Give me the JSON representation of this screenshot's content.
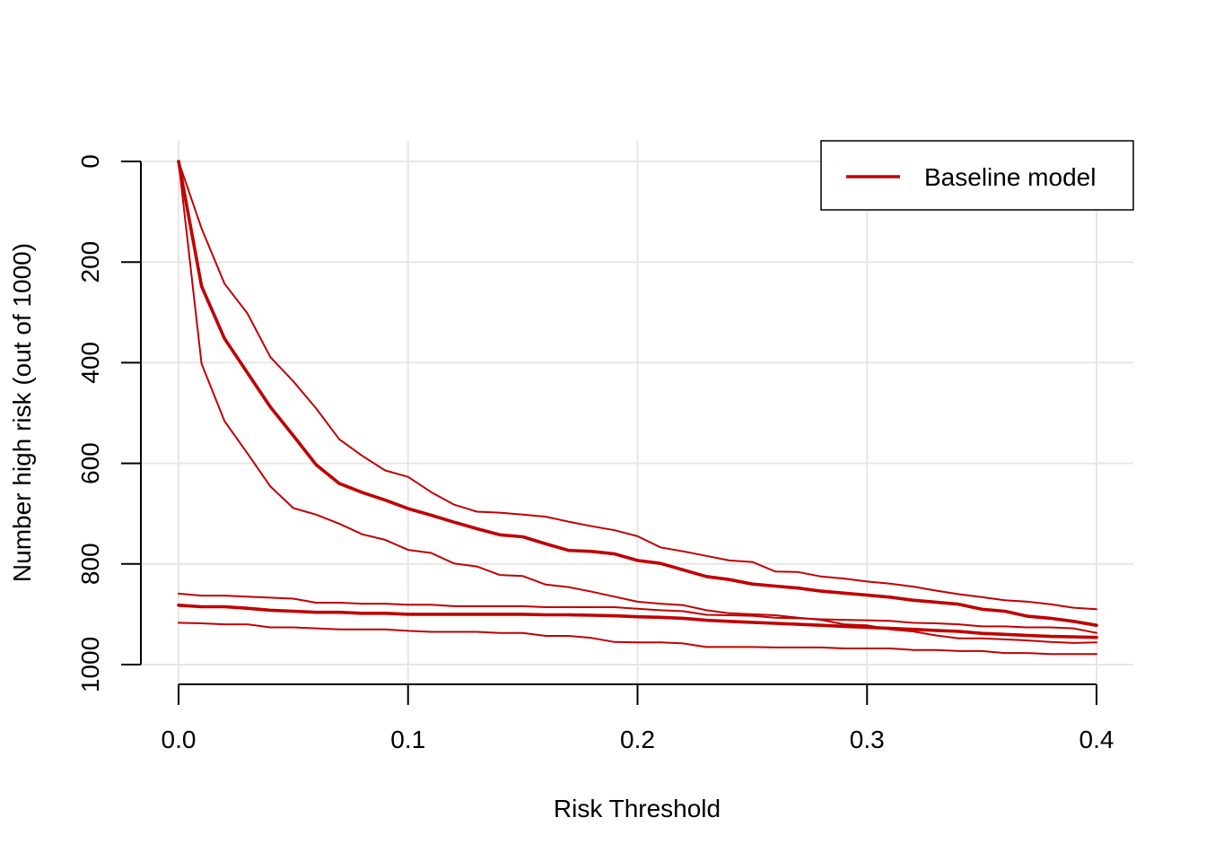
{
  "chart_data": {
    "type": "line",
    "xlabel": "Risk Threshold",
    "ylabel": "Number high risk (out of 1000)",
    "xlim": [
      0.0,
      0.4
    ],
    "ylim": [
      1000,
      0
    ],
    "y_reversed": true,
    "x_ticks": [
      0.0,
      0.1,
      0.2,
      0.3,
      0.4
    ],
    "x_tick_labels": [
      "0.0",
      "0.1",
      "0.2",
      "0.3",
      "0.4"
    ],
    "y_ticks": [
      0,
      200,
      400,
      600,
      800,
      1000
    ],
    "y_tick_labels": [
      "0",
      "200",
      "400",
      "600",
      "800",
      "1000"
    ],
    "grid": true,
    "legend": {
      "position": "top-right",
      "entries": [
        {
          "label": "Baseline model",
          "color": "#c00000"
        }
      ]
    },
    "color": "#c00000",
    "x": [
      0.0,
      0.01,
      0.02,
      0.03,
      0.04,
      0.05,
      0.06,
      0.07,
      0.08,
      0.09,
      0.1,
      0.11,
      0.12,
      0.13,
      0.14,
      0.15,
      0.16,
      0.17,
      0.18,
      0.19,
      0.2,
      0.21,
      0.22,
      0.23,
      0.24,
      0.25,
      0.26,
      0.27,
      0.28,
      0.29,
      0.3,
      0.31,
      0.32,
      0.33,
      0.34,
      0.35,
      0.36,
      0.37,
      0.38,
      0.39,
      0.4
    ],
    "series": [
      {
        "role": "estimate",
        "weight": "thick",
        "values": [
          0,
          248,
          352,
          420,
          488,
          545,
          603,
          640,
          658,
          673,
          690,
          703,
          717,
          730,
          742,
          746,
          760,
          773,
          775,
          780,
          793,
          799,
          812,
          825,
          831,
          840,
          844,
          848,
          854,
          858,
          862,
          866,
          872,
          876,
          880,
          890,
          894,
          904,
          908,
          914,
          922
        ]
      },
      {
        "role": "lower",
        "weight": "thin",
        "values": [
          0,
          133,
          243,
          302,
          389,
          437,
          491,
          552,
          585,
          614,
          627,
          657,
          682,
          696,
          698,
          702,
          706,
          716,
          725,
          733,
          745,
          767,
          775,
          784,
          793,
          796,
          815,
          816,
          825,
          829,
          835,
          839,
          845,
          853,
          860,
          866,
          872,
          875,
          880,
          887,
          890
        ]
      },
      {
        "role": "upper",
        "weight": "thin",
        "values": [
          0,
          402,
          516,
          580,
          646,
          689,
          702,
          720,
          741,
          752,
          772,
          778,
          799,
          805,
          822,
          824,
          841,
          846,
          855,
          865,
          875,
          879,
          882,
          892,
          898,
          900,
          902,
          907,
          911,
          920,
          922,
          930,
          934,
          942,
          948,
          948,
          950,
          952,
          955,
          957,
          956
        ]
      },
      {
        "role": "estimate",
        "weight": "thick",
        "values": [
          882,
          885,
          885,
          888,
          892,
          894,
          896,
          896,
          898,
          898,
          900,
          900,
          900,
          900,
          900,
          900,
          901,
          901,
          902,
          903,
          905,
          906,
          908,
          912,
          914,
          916,
          918,
          920,
          922,
          924,
          926,
          928,
          930,
          932,
          934,
          938,
          940,
          942,
          944,
          945,
          946
        ]
      },
      {
        "role": "lower",
        "weight": "thin",
        "values": [
          859,
          863,
          863,
          865,
          867,
          869,
          877,
          877,
          879,
          879,
          881,
          881,
          884,
          884,
          884,
          884,
          886,
          886,
          886,
          886,
          889,
          892,
          894,
          901,
          902,
          903,
          907,
          908,
          910,
          911,
          912,
          913,
          917,
          918,
          920,
          924,
          924,
          926,
          926,
          928,
          937
        ]
      },
      {
        "role": "upper",
        "weight": "thin",
        "values": [
          917,
          918,
          920,
          920,
          926,
          926,
          928,
          930,
          930,
          930,
          933,
          935,
          935,
          935,
          937,
          937,
          943,
          943,
          947,
          955,
          956,
          956,
          958,
          965,
          965,
          965,
          966,
          966,
          966,
          968,
          968,
          968,
          971,
          971,
          973,
          973,
          977,
          977,
          979,
          979,
          979
        ]
      }
    ]
  }
}
